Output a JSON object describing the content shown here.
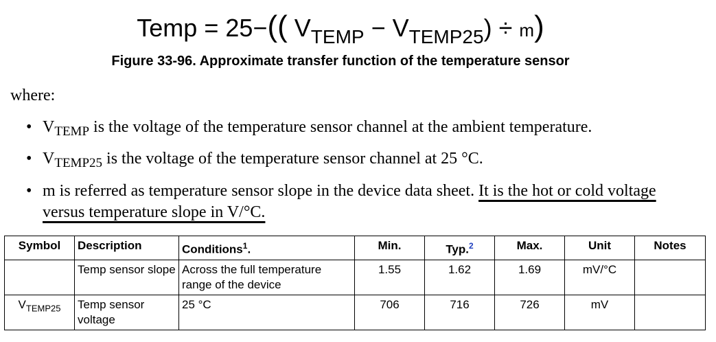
{
  "formula": {
    "lhs": "Temp",
    "eq": "=",
    "const": "25",
    "minus": "−",
    "open": "((",
    "v1": {
      "main": "V",
      "sub": "TEMP"
    },
    "minus2": "−",
    "v2": {
      "main": "V",
      "sub": "TEMP25"
    },
    "close1": ")",
    "div": "÷",
    "m": "m",
    "close2": ")"
  },
  "caption": "Figure 33-96. Approximate transfer function of the temperature sensor",
  "intro": "where:",
  "bullets": [
    {
      "symbol": {
        "main": "V",
        "sub": "TEMP"
      },
      "text": " is the voltage of the temperature sensor channel at the ambient temperature."
    },
    {
      "symbol": {
        "main": "V",
        "sub": "TEMP25"
      },
      "text": " is the voltage of the temperature sensor channel at 25 °C."
    },
    {
      "text": "m is referred as temperature sensor slope in the device data sheet. ",
      "highlight": "It is the hot or cold voltage versus temperature slope in V/°C."
    }
  ],
  "table": {
    "columns": [
      "Symbol",
      "Description",
      {
        "text": "Conditions",
        "note": "1",
        "after": "."
      },
      "Min.",
      {
        "text": "Typ.",
        "note": "2"
      },
      "Max.",
      "Unit",
      "Notes"
    ],
    "rows": [
      [
        null,
        "Temp sensor slope",
        "Across the full temperature range of the device",
        "1.55",
        "1.62",
        "1.69",
        "mV/°C",
        null
      ],
      [
        {
          "main": "V",
          "sub": "TEMP25"
        },
        "Temp sensor voltage",
        "25 °C",
        "706",
        "716",
        "726",
        "mV",
        null
      ]
    ]
  }
}
